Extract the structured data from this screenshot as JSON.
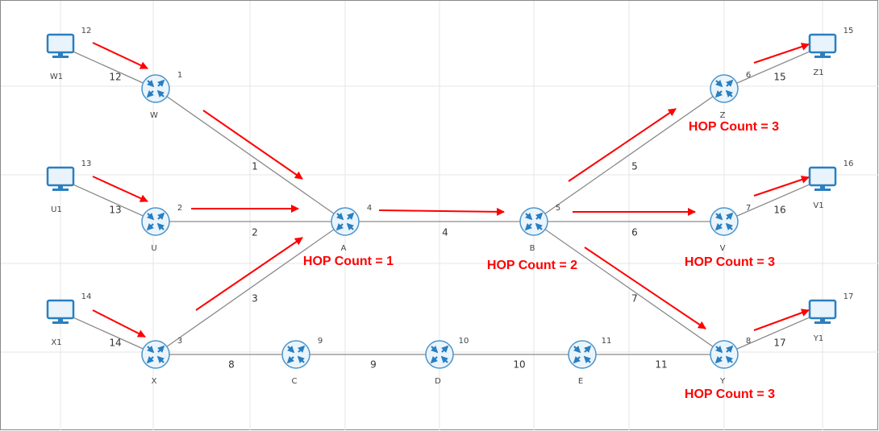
{
  "nodes": [
    {
      "label": "W1",
      "id": "12"
    },
    {
      "label": "W",
      "id": "1"
    },
    {
      "label": "U1",
      "id": "13"
    },
    {
      "label": "U",
      "id": "2"
    },
    {
      "label": "X1",
      "id": "14"
    },
    {
      "label": "X",
      "id": "3"
    },
    {
      "label": "A",
      "id": "4"
    },
    {
      "label": "B",
      "id": "5"
    },
    {
      "label": "C",
      "id": "9"
    },
    {
      "label": "D",
      "id": "10"
    },
    {
      "label": "E",
      "id": "11"
    },
    {
      "label": "Z",
      "id": "6"
    },
    {
      "label": "V",
      "id": "7"
    },
    {
      "label": "Y",
      "id": "8"
    },
    {
      "label": "Z1",
      "id": "15"
    },
    {
      "label": "V1",
      "id": "16"
    },
    {
      "label": "Y1",
      "id": "17"
    }
  ],
  "links": [
    {
      "label": "12"
    },
    {
      "label": "1"
    },
    {
      "label": "13"
    },
    {
      "label": "2"
    },
    {
      "label": "14"
    },
    {
      "label": "3"
    },
    {
      "label": "4"
    },
    {
      "label": "5"
    },
    {
      "label": "6"
    },
    {
      "label": "7"
    },
    {
      "label": "8"
    },
    {
      "label": "9"
    },
    {
      "label": "10"
    },
    {
      "label": "11"
    },
    {
      "label": "15"
    },
    {
      "label": "16"
    },
    {
      "label": "17"
    }
  ],
  "annotations": [
    "HOP Count = 1",
    "HOP Count = 2",
    "HOP Count = 3",
    "HOP Count = 3",
    "HOP Count = 3"
  ]
}
